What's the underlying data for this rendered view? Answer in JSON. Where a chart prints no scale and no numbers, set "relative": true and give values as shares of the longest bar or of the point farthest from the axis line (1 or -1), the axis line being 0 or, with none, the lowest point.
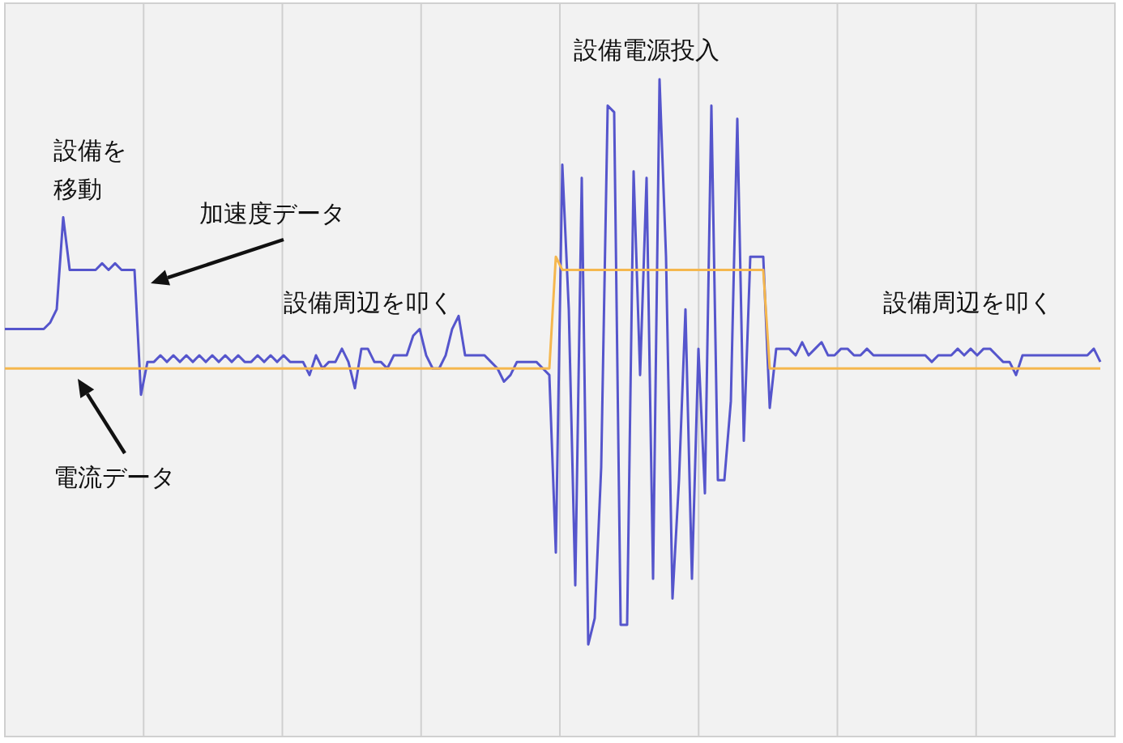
{
  "chart_data": {
    "type": "line",
    "relative": true,
    "grid": "x",
    "marker": "none",
    "line_style": "solid",
    "categories": [
      null,
      null,
      null,
      null,
      null,
      null,
      null,
      null,
      null,
      null,
      null,
      null,
      null,
      null,
      null,
      null,
      null,
      null,
      null,
      null,
      null,
      null,
      null,
      null,
      null,
      null,
      null,
      null,
      null,
      null,
      null,
      null,
      null,
      null,
      null,
      null,
      null,
      null,
      null,
      null,
      null,
      null,
      null,
      null,
      null,
      null,
      null,
      null,
      null,
      null,
      null,
      null,
      null,
      null,
      null,
      null,
      null,
      null,
      null,
      null,
      null,
      null,
      null,
      null,
      null,
      null,
      null,
      null,
      null,
      null,
      null,
      null,
      null,
      null,
      null,
      null,
      null,
      null,
      null,
      null,
      null,
      null,
      null,
      null,
      null,
      null,
      null,
      null,
      null,
      null,
      null,
      null,
      null,
      null,
      null,
      null,
      null,
      null,
      null,
      null,
      null,
      null,
      null,
      null,
      null,
      null,
      null,
      null,
      null,
      null,
      null,
      null,
      null,
      null,
      null,
      null,
      null,
      null,
      null,
      null,
      null,
      null,
      null,
      null,
      null,
      null,
      null,
      null,
      null,
      null,
      null,
      null,
      null,
      null,
      null,
      null,
      null,
      null,
      null,
      null,
      null,
      null,
      null,
      null,
      null,
      null,
      null,
      null,
      null,
      null,
      null,
      null,
      null,
      null,
      null,
      null,
      null,
      null,
      null,
      null,
      null,
      null,
      null,
      null,
      null,
      null,
      null,
      null,
      null,
      null
    ],
    "series": [
      {
        "color": "#5555cc",
        "values": [
          0.62,
          0.62,
          0.62,
          0.62,
          0.62,
          0.62,
          0.62,
          0.63,
          0.65,
          0.79,
          0.71,
          0.71,
          0.71,
          0.71,
          0.71,
          0.72,
          0.71,
          0.72,
          0.71,
          0.71,
          0.71,
          0.52,
          0.57,
          0.57,
          0.58,
          0.57,
          0.58,
          0.57,
          0.58,
          0.57,
          0.58,
          0.57,
          0.58,
          0.57,
          0.58,
          0.57,
          0.58,
          0.57,
          0.57,
          0.58,
          0.57,
          0.58,
          0.57,
          0.58,
          0.57,
          0.57,
          0.57,
          0.55,
          0.58,
          0.56,
          0.57,
          0.57,
          0.59,
          0.57,
          0.53,
          0.59,
          0.59,
          0.57,
          0.57,
          0.56,
          0.58,
          0.58,
          0.58,
          0.61,
          0.62,
          0.58,
          0.56,
          0.56,
          0.58,
          0.62,
          0.64,
          0.58,
          0.58,
          0.58,
          0.58,
          0.57,
          0.56,
          0.54,
          0.55,
          0.57,
          0.57,
          0.57,
          0.57,
          0.56,
          0.55,
          0.28,
          0.87,
          0.65,
          0.23,
          0.85,
          0.14,
          0.18,
          0.41,
          0.96,
          0.95,
          0.17,
          0.17,
          0.86,
          0.55,
          0.85,
          0.24,
          1.0,
          0.73,
          0.21,
          0.39,
          0.65,
          0.24,
          0.59,
          0.37,
          0.96,
          0.39,
          0.39,
          0.51,
          0.94,
          0.45,
          0.73,
          0.73,
          0.73,
          0.5,
          0.59,
          0.59,
          0.59,
          0.58,
          0.6,
          0.58,
          0.59,
          0.6,
          0.58,
          0.58,
          0.59,
          0.59,
          0.58,
          0.58,
          0.59,
          0.58,
          0.58,
          0.58,
          0.58,
          0.58,
          0.58,
          0.58,
          0.58,
          0.58,
          0.57,
          0.58,
          0.58,
          0.58,
          0.59,
          0.58,
          0.59,
          0.58,
          0.59,
          0.59,
          0.58,
          0.57,
          0.57,
          0.55,
          0.58,
          0.58,
          0.58,
          0.58,
          0.58,
          0.58,
          0.58,
          0.58,
          0.58,
          0.58,
          0.58,
          0.59,
          0.57
        ]
      },
      {
        "color": "#f5b74e",
        "values": [
          0.56,
          0.56,
          0.56,
          0.56,
          0.56,
          0.56,
          0.56,
          0.56,
          0.56,
          0.56,
          0.56,
          0.56,
          0.56,
          0.56,
          0.56,
          0.56,
          0.56,
          0.56,
          0.56,
          0.56,
          0.56,
          0.56,
          0.56,
          0.56,
          0.56,
          0.56,
          0.56,
          0.56,
          0.56,
          0.56,
          0.56,
          0.56,
          0.56,
          0.56,
          0.56,
          0.56,
          0.56,
          0.56,
          0.56,
          0.56,
          0.56,
          0.56,
          0.56,
          0.56,
          0.56,
          0.56,
          0.56,
          0.56,
          0.56,
          0.56,
          0.56,
          0.56,
          0.56,
          0.56,
          0.56,
          0.56,
          0.56,
          0.56,
          0.56,
          0.56,
          0.56,
          0.56,
          0.56,
          0.56,
          0.56,
          0.56,
          0.56,
          0.56,
          0.56,
          0.56,
          0.56,
          0.56,
          0.56,
          0.56,
          0.56,
          0.56,
          0.56,
          0.56,
          0.56,
          0.56,
          0.56,
          0.56,
          0.56,
          0.56,
          0.56,
          0.73,
          0.71,
          0.71,
          0.71,
          0.71,
          0.71,
          0.71,
          0.71,
          0.71,
          0.71,
          0.71,
          0.71,
          0.71,
          0.71,
          0.71,
          0.71,
          0.71,
          0.71,
          0.71,
          0.71,
          0.71,
          0.71,
          0.71,
          0.71,
          0.71,
          0.71,
          0.71,
          0.71,
          0.71,
          0.71,
          0.71,
          0.71,
          0.71,
          0.56,
          0.56,
          0.56,
          0.56,
          0.56,
          0.56,
          0.56,
          0.56,
          0.56,
          0.56,
          0.56,
          0.56,
          0.56,
          0.56,
          0.56,
          0.56,
          0.56,
          0.56,
          0.56,
          0.56,
          0.56,
          0.56,
          0.56,
          0.56,
          0.56,
          0.56,
          0.56,
          0.56,
          0.56,
          0.56,
          0.56,
          0.56,
          0.56,
          0.56,
          0.56,
          0.56,
          0.56,
          0.56,
          0.56,
          0.56,
          0.56,
          0.56,
          0.56,
          0.56,
          0.56,
          0.56,
          0.56,
          0.56,
          0.56,
          0.56,
          0.56,
          0.56
        ]
      }
    ],
    "annotations": [
      "設備を",
      "移動",
      "加速度データ",
      "設備周辺を叩く",
      "電流データ",
      "設備電源投入",
      "設備周辺を叩く"
    ]
  }
}
